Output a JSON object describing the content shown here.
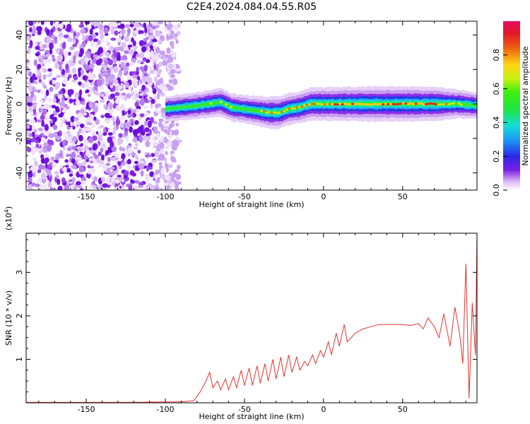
{
  "title": "C2E4.2024.084.04.55.R05",
  "chart_data": [
    {
      "type": "heatmap",
      "xlabel": "Height of straight line (km)",
      "ylabel": "Frequency (Hz)",
      "xlim": [
        -188,
        97
      ],
      "ylim": [
        -50,
        48
      ],
      "xticks": [
        -150,
        -100,
        -50,
        0,
        50
      ],
      "yticks": [
        -40,
        -20,
        0,
        20,
        40
      ],
      "colorbar": {
        "label": "Normalized spectral amplitude",
        "range": [
          0,
          1
        ],
        "ticks": [
          "0.0",
          "0.2",
          "0.4",
          "0.6",
          "0.8"
        ],
        "tick_values": [
          0,
          0.2,
          0.4,
          0.6,
          0.8
        ]
      },
      "noise_region": {
        "x_range": [
          -188,
          -92
        ],
        "y_range": [
          -50,
          48
        ]
      },
      "ridge": {
        "x": [
          -100,
          -90,
          -80,
          -72,
          -65,
          -58,
          -50,
          -42,
          -35,
          -28,
          -22,
          -15,
          -8,
          -3,
          5,
          15,
          30,
          50,
          70,
          85,
          97
        ],
        "frequency": [
          -3,
          -2,
          -1,
          0,
          1,
          -2,
          -3,
          -4,
          -5,
          -5,
          -3,
          -2,
          0,
          0,
          0,
          0,
          0,
          0,
          0,
          0,
          -1
        ],
        "amplitude": [
          0.35,
          0.4,
          0.45,
          0.5,
          0.55,
          0.5,
          0.5,
          0.6,
          0.7,
          0.75,
          0.7,
          0.7,
          0.75,
          0.8,
          0.8,
          0.85,
          0.9,
          0.9,
          0.85,
          0.55,
          0.4
        ]
      }
    },
    {
      "type": "line",
      "xlabel": "Height of straight line (km)",
      "ylabel": "SNR (10 * v/v)",
      "yscale_label": "(x10",
      "yscale_exp": "4",
      "yscale_close": ")",
      "xlim": [
        -188,
        97
      ],
      "ylim": [
        0,
        3.9
      ],
      "xticks": [
        -150,
        -100,
        -50,
        0,
        50
      ],
      "yticks": [
        1,
        2,
        3
      ],
      "color": "#e8312e",
      "series": [
        {
          "x": [
            -188,
            -150,
            -120,
            -100,
            -90,
            -82,
            -78,
            -75,
            -72,
            -70,
            -67,
            -65,
            -62,
            -60,
            -57,
            -55,
            -52,
            -50,
            -47,
            -45,
            -42,
            -40,
            -37,
            -35,
            -32,
            -30,
            -27,
            -25,
            -22,
            -20,
            -17,
            -15,
            -12,
            -10,
            -7,
            -5,
            -2,
            0,
            3,
            5,
            8,
            10,
            13,
            15,
            20,
            25,
            30,
            35,
            40,
            45,
            50,
            55,
            60,
            63,
            66,
            70,
            73,
            76,
            80,
            83,
            86,
            88,
            90,
            92,
            94,
            96,
            97
          ],
          "y": [
            0.01,
            0.01,
            0.01,
            0.02,
            0.02,
            0.05,
            0.25,
            0.45,
            0.7,
            0.35,
            0.5,
            0.3,
            0.55,
            0.3,
            0.6,
            0.35,
            0.75,
            0.4,
            0.8,
            0.4,
            0.85,
            0.45,
            0.9,
            0.5,
            1.0,
            0.55,
            1.05,
            0.6,
            1.1,
            0.7,
            1.05,
            0.75,
            0.95,
            0.85,
            1.1,
            0.9,
            1.2,
            1.05,
            1.4,
            1.1,
            1.6,
            1.3,
            1.8,
            1.4,
            1.6,
            1.7,
            1.75,
            1.8,
            1.8,
            1.8,
            1.8,
            1.78,
            1.82,
            1.7,
            1.95,
            1.75,
            1.5,
            2.05,
            1.3,
            2.2,
            1.6,
            0.9,
            3.2,
            0.1,
            2.3,
            1.1,
            3.9
          ]
        }
      ]
    }
  ]
}
